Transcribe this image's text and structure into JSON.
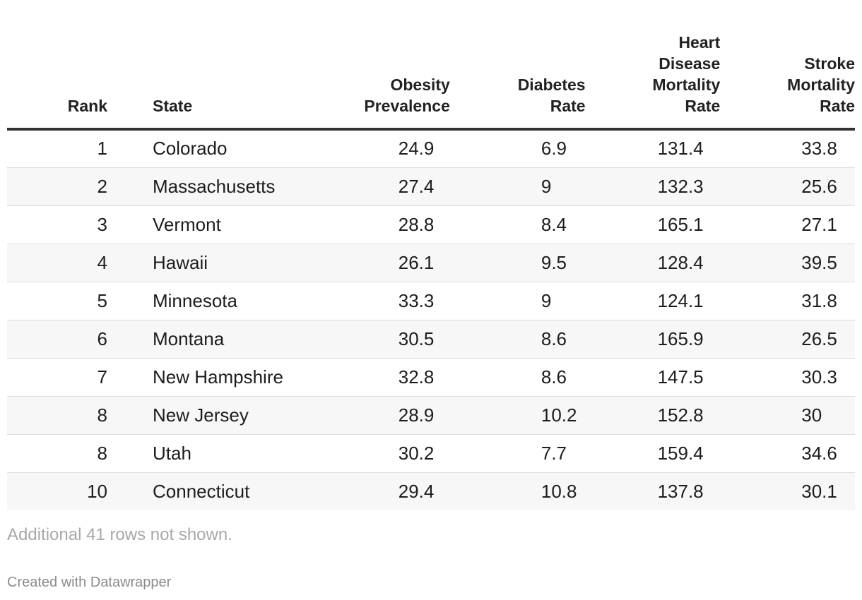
{
  "chart_data": {
    "type": "table",
    "columns": [
      "Rank",
      "State",
      "Obesity Prevalence",
      "Diabetes Rate",
      "Heart Disease Mortality Rate",
      "Stroke Mortality Rate"
    ],
    "header_lines": [
      [
        "Rank"
      ],
      [
        "State"
      ],
      [
        "Obesity",
        "Prevalence"
      ],
      [
        "Diabetes",
        "Rate"
      ],
      [
        "Heart",
        "Disease",
        "Mortality",
        "Rate"
      ],
      [
        "Stroke",
        "Mortality",
        "Rate"
      ]
    ],
    "rows": [
      [
        "1",
        "Colorado",
        "24.9",
        "6.9",
        "131.4",
        "33.8"
      ],
      [
        "2",
        "Massachusetts",
        "27.4",
        "9",
        "132.3",
        "25.6"
      ],
      [
        "3",
        "Vermont",
        "28.8",
        "8.4",
        "165.1",
        "27.1"
      ],
      [
        "4",
        "Hawaii",
        "26.1",
        "9.5",
        "128.4",
        "39.5"
      ],
      [
        "5",
        "Minnesota",
        "33.3",
        "9",
        "124.1",
        "31.8"
      ],
      [
        "6",
        "Montana",
        "30.5",
        "8.6",
        "165.9",
        "26.5"
      ],
      [
        "7",
        "New Hampshire",
        "32.8",
        "8.6",
        "147.5",
        "30.3"
      ],
      [
        "8",
        "New Jersey",
        "28.9",
        "10.2",
        "152.8",
        "30"
      ],
      [
        "8",
        "Utah",
        "30.2",
        "7.7",
        "159.4",
        "34.6"
      ],
      [
        "10",
        "Connecticut",
        "29.4",
        "10.8",
        "137.8",
        "30.1"
      ]
    ],
    "note": "Additional 41 rows not shown.",
    "credit": "Created with Datawrapper"
  }
}
